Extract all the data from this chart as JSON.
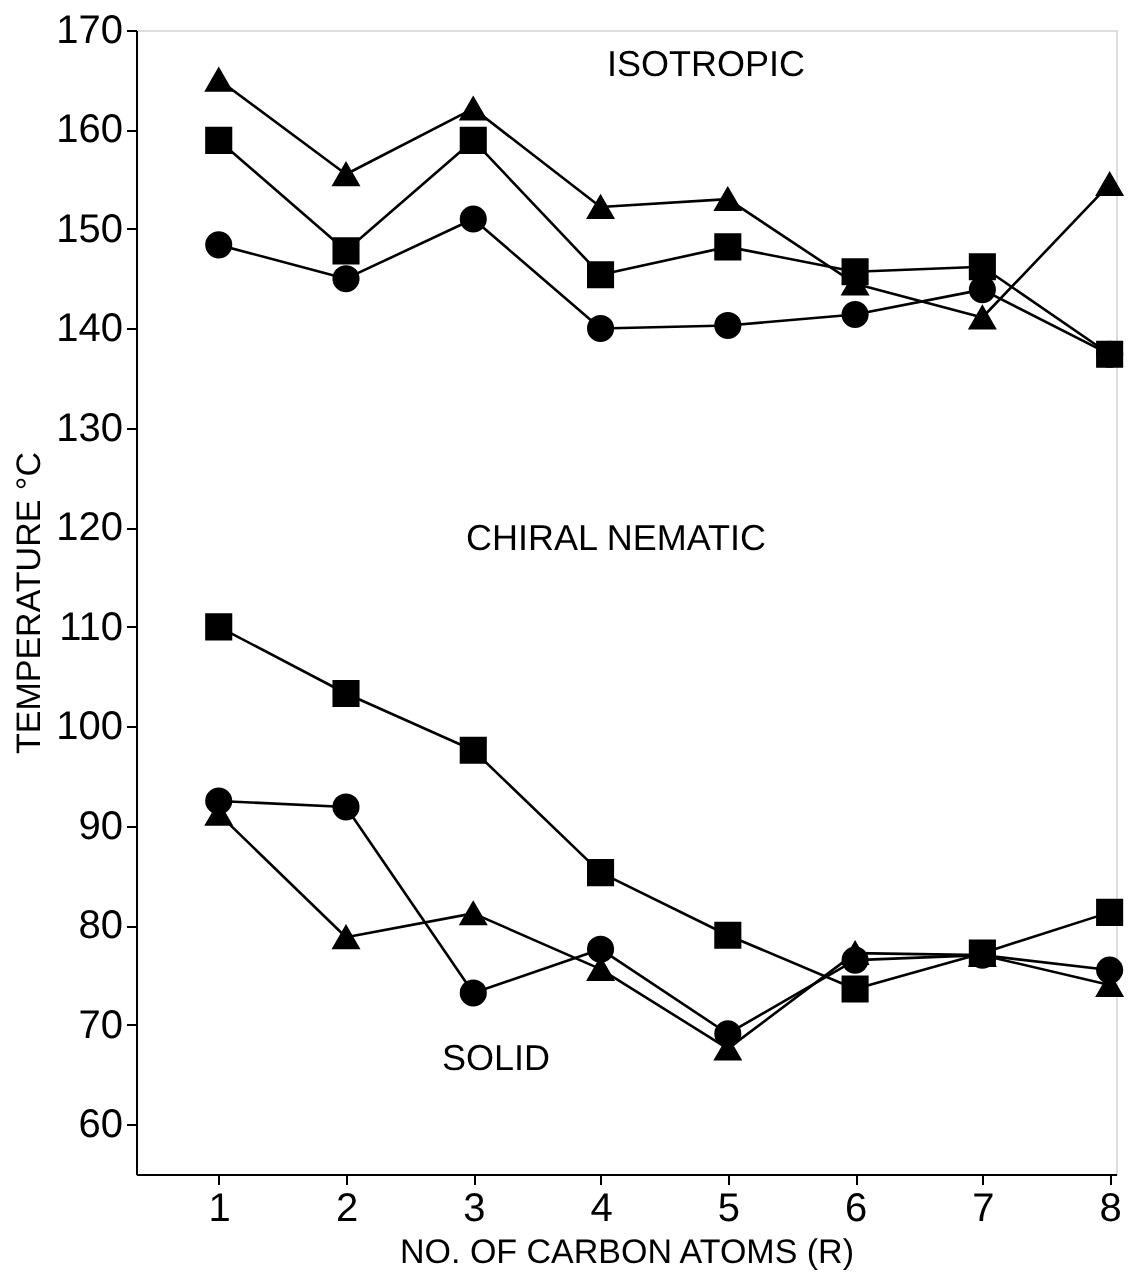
{
  "chart_data": {
    "type": "line",
    "xlabel": "NO. OF CARBON ATOMS (R)",
    "ylabel": "TEMPERATURE °C",
    "x": [
      1,
      2,
      3,
      4,
      5,
      6,
      7,
      8
    ],
    "xlim": [
      0.35,
      8.05
    ],
    "xticks": [
      1,
      2,
      3,
      4,
      5,
      6,
      7,
      8
    ],
    "ylim": [
      55,
      170
    ],
    "yticks": [
      60,
      70,
      80,
      90,
      100,
      110,
      120,
      130,
      140,
      150,
      160,
      170
    ],
    "grid": false,
    "line_style": "solid",
    "series": [
      {
        "color": "#000000",
        "marker": "circle",
        "values": [
          148.4,
          145.0,
          151.0,
          140.0,
          140.3,
          141.4,
          143.9,
          137.4
        ]
      },
      {
        "color": "#000000",
        "marker": "triangle",
        "values": [
          165.0,
          155.5,
          162.1,
          152.2,
          153.0,
          144.5,
          141.1,
          154.5
        ]
      },
      {
        "color": "#000000",
        "marker": "square",
        "values": [
          158.9,
          147.8,
          158.9,
          145.4,
          148.2,
          145.7,
          146.2,
          137.4
        ]
      },
      {
        "color": "#000000",
        "marker": "circle",
        "values": [
          92.5,
          91.9,
          73.2,
          77.6,
          69.1,
          76.5,
          77.0,
          75.5
        ]
      },
      {
        "color": "#000000",
        "marker": "triangle",
        "values": [
          91.2,
          78.8,
          81.2,
          75.6,
          67.6,
          77.2,
          77.0,
          74.0
        ]
      },
      {
        "color": "#000000",
        "marker": "square",
        "values": [
          110.0,
          103.3,
          97.6,
          85.3,
          79.0,
          73.6,
          77.2,
          81.3
        ]
      }
    ],
    "annotations": [
      "ISOTROPIC",
      "CHIRAL NEMATIC",
      "SOLID"
    ]
  }
}
